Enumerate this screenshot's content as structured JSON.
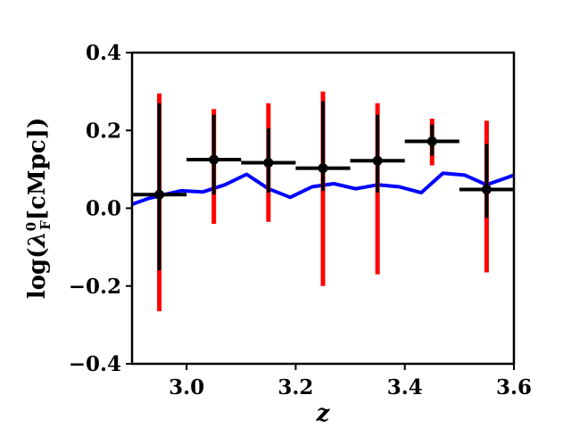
{
  "chart_data": {
    "type": "scatter",
    "title": "",
    "xlabel": "z",
    "ylabel_parts": {
      "pre": "log(",
      "symbol": "λ",
      "sup": "0",
      "sub": "F",
      "post": "[cMpc])"
    },
    "xlim": [
      2.9,
      3.6
    ],
    "ylim": [
      -0.4,
      0.4
    ],
    "xticks": [
      3.0,
      3.2,
      3.4,
      3.6
    ],
    "xtick_labels": [
      "3.0",
      "3.2",
      "3.4",
      "3.6"
    ],
    "yticks": [
      -0.4,
      -0.2,
      0.0,
      0.2,
      0.4
    ],
    "ytick_labels": [
      "−0.4",
      "−0.2",
      "0.0",
      "0.2",
      "0.4"
    ],
    "grid": false,
    "colors": {
      "points": "#000000",
      "errors_outer": "#ff0000",
      "errors_inner": "#000000",
      "model_line": "#0000ff"
    },
    "points": [
      {
        "x": 2.95,
        "y": 0.035,
        "x_err": 0.05,
        "inner": [
          -0.16,
          0.27
        ],
        "outer": [
          -0.265,
          0.295
        ]
      },
      {
        "x": 3.05,
        "y": 0.125,
        "x_err": 0.05,
        "inner": [
          0.035,
          0.24
        ],
        "outer": [
          -0.04,
          0.255
        ]
      },
      {
        "x": 3.15,
        "y": 0.117,
        "x_err": 0.05,
        "inner": [
          0.04,
          0.205
        ],
        "outer": [
          -0.035,
          0.27
        ]
      },
      {
        "x": 3.25,
        "y": 0.103,
        "x_err": 0.05,
        "inner": [
          0.045,
          0.275
        ],
        "outer": [
          -0.2,
          0.3
        ]
      },
      {
        "x": 3.35,
        "y": 0.122,
        "x_err": 0.05,
        "inner": [
          0.04,
          0.24
        ],
        "outer": [
          -0.17,
          0.27
        ]
      },
      {
        "x": 3.45,
        "y": 0.172,
        "x_err": 0.05,
        "inner": [
          0.135,
          0.215
        ],
        "outer": [
          0.11,
          0.23
        ]
      },
      {
        "x": 3.55,
        "y": 0.048,
        "x_err": 0.05,
        "inner": [
          -0.025,
          0.165
        ],
        "outer": [
          -0.165,
          0.225
        ]
      }
    ],
    "model_line": {
      "x": [
        2.9,
        2.93,
        2.96,
        2.99,
        3.03,
        3.07,
        3.11,
        3.15,
        3.19,
        3.23,
        3.27,
        3.31,
        3.35,
        3.39,
        3.43,
        3.47,
        3.51,
        3.55,
        3.59,
        3.6
      ],
      "y": [
        0.01,
        0.025,
        0.035,
        0.045,
        0.042,
        0.06,
        0.087,
        0.05,
        0.028,
        0.055,
        0.063,
        0.05,
        0.06,
        0.055,
        0.04,
        0.09,
        0.085,
        0.06,
        0.08,
        0.085
      ]
    }
  }
}
